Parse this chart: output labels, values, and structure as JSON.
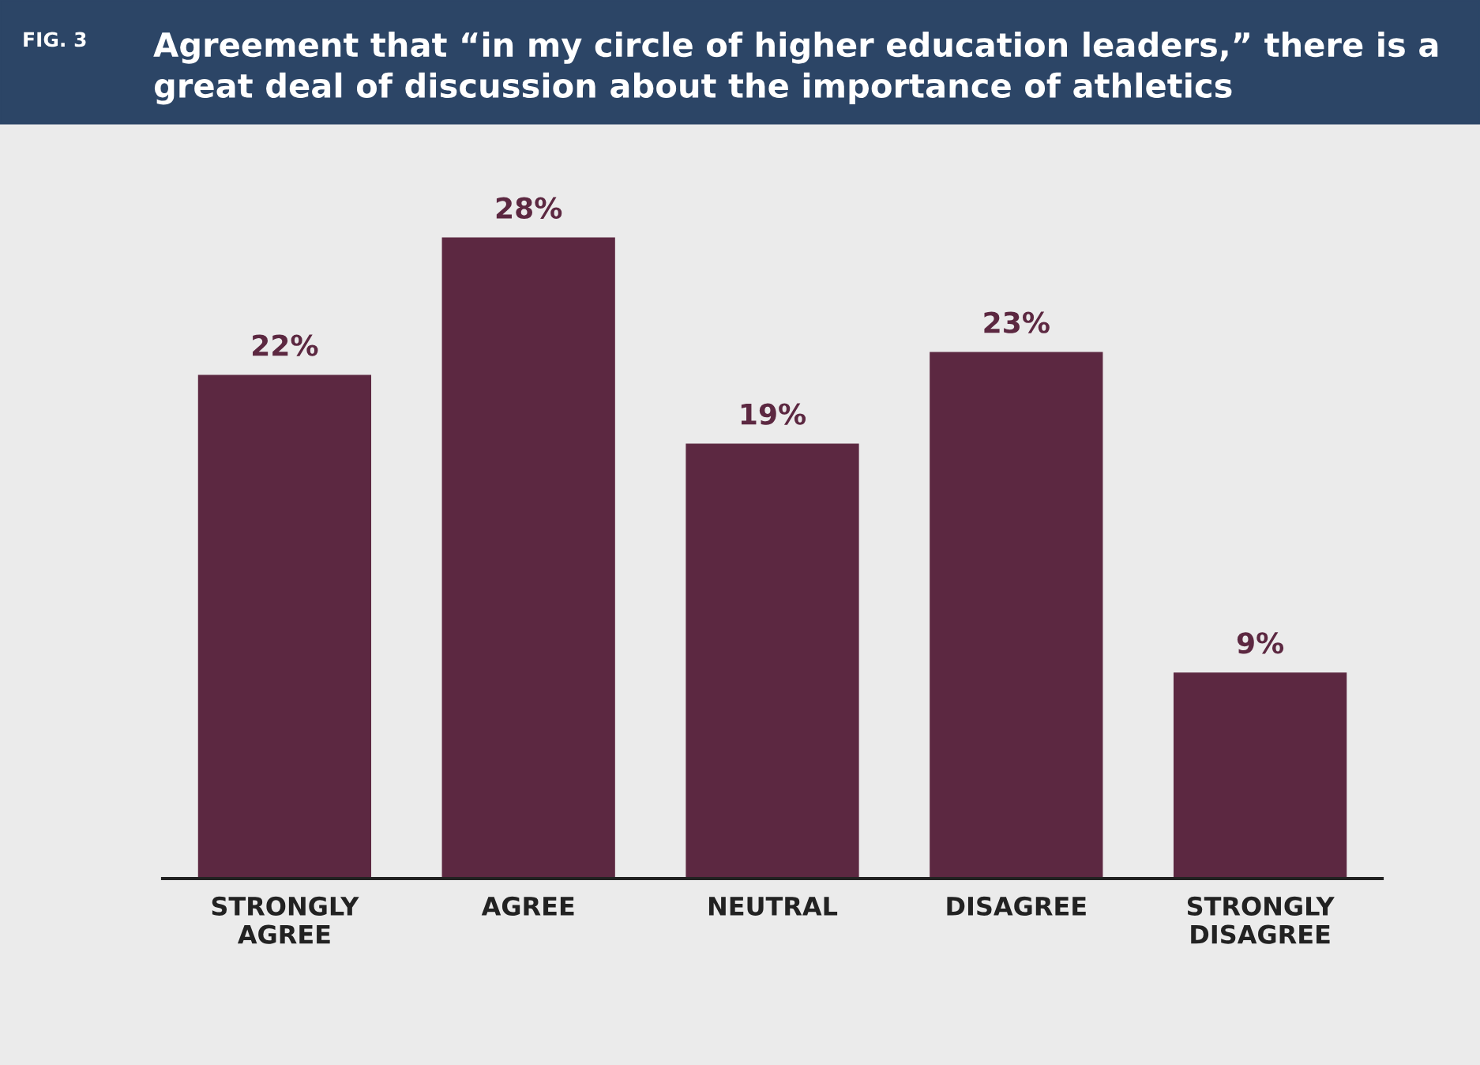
{
  "chart_data": {
    "type": "bar",
    "title": "Agreement that “in my circle of higher education leaders,” there is a\ngreat deal of discussion about the importance of athletics",
    "annotations": [
      "FIG. 3"
    ],
    "categories": [
      "STRONGLY\nAGREE",
      "AGREE",
      "NEUTRAL",
      "DISAGREE",
      "STRONGLY\nDISAGREE"
    ],
    "values": [
      22,
      28,
      19,
      23,
      9
    ],
    "value_labels": [
      "22%",
      "28%",
      "19%",
      "23%",
      "9%"
    ],
    "color": "#5c2841"
  }
}
